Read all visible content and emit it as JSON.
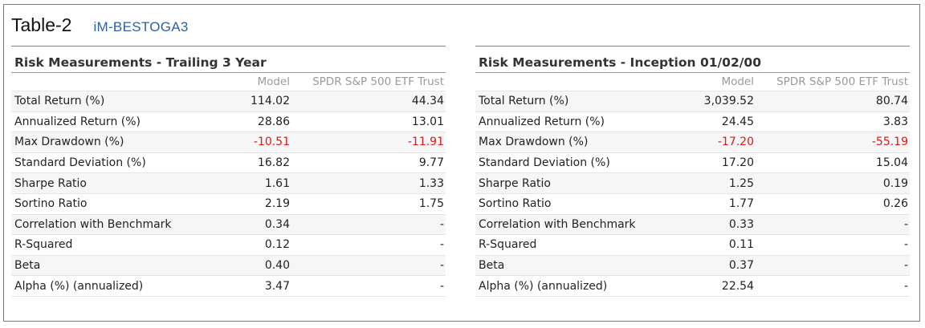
{
  "heading": {
    "table_label": "Table-2",
    "model_name": "iM-BESTOGA3"
  },
  "colors": {
    "negative": "#e01616",
    "model_link": "#2d5fa3"
  },
  "panels": [
    {
      "title": "Risk Measurements - Trailing 3 Year",
      "columns": [
        "",
        "Model",
        "SPDR S&P 500 ETF Trust"
      ],
      "rows": [
        {
          "label": "Total Return (%)",
          "model": "114.02",
          "bench": "44.34"
        },
        {
          "label": "Annualized Return (%)",
          "model": "28.86",
          "bench": "13.01"
        },
        {
          "label": "Max Drawdown (%)",
          "model": "-10.51",
          "bench": "-11.91"
        },
        {
          "label": "Standard Deviation (%)",
          "model": "16.82",
          "bench": "9.77"
        },
        {
          "label": "Sharpe Ratio",
          "model": "1.61",
          "bench": "1.33"
        },
        {
          "label": "Sortino Ratio",
          "model": "2.19",
          "bench": "1.75"
        },
        {
          "label": "Correlation with Benchmark",
          "model": "0.34",
          "bench": "-"
        },
        {
          "label": "R-Squared",
          "model": "0.12",
          "bench": "-"
        },
        {
          "label": "Beta",
          "model": "0.40",
          "bench": "-"
        },
        {
          "label": "Alpha (%) (annualized)",
          "model": "3.47",
          "bench": "-"
        }
      ]
    },
    {
      "title": "Risk Measurements - Inception 01/02/00",
      "columns": [
        "",
        "Model",
        "SPDR S&P 500 ETF Trust"
      ],
      "rows": [
        {
          "label": "Total Return (%)",
          "model": "3,039.52",
          "bench": "80.74"
        },
        {
          "label": "Annualized Return (%)",
          "model": "24.45",
          "bench": "3.83"
        },
        {
          "label": "Max Drawdown (%)",
          "model": "-17.20",
          "bench": "-55.19"
        },
        {
          "label": "Standard Deviation (%)",
          "model": "17.20",
          "bench": "15.04"
        },
        {
          "label": "Sharpe Ratio",
          "model": "1.25",
          "bench": "0.19"
        },
        {
          "label": "Sortino Ratio",
          "model": "1.77",
          "bench": "0.26"
        },
        {
          "label": "Correlation with Benchmark",
          "model": "0.33",
          "bench": "-"
        },
        {
          "label": "R-Squared",
          "model": "0.11",
          "bench": "-"
        },
        {
          "label": "Beta",
          "model": "0.37",
          "bench": "-"
        },
        {
          "label": "Alpha (%) (annualized)",
          "model": "22.54",
          "bench": "-"
        }
      ]
    }
  ]
}
